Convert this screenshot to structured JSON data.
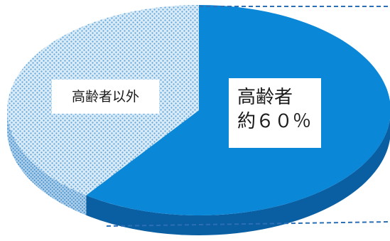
{
  "chart_data": {
    "type": "pie",
    "style": "3d",
    "slices": [
      {
        "label": "高齢者",
        "value_text": "約６０％",
        "value": 60,
        "pattern": "solid"
      },
      {
        "label": "高齢者以外",
        "value": 40,
        "pattern": "dotted"
      }
    ]
  },
  "colors": {
    "elderly_top": "#0a87d6",
    "elderly_side": "#0a5fa3",
    "other_top": "#b9d8ef",
    "other_side": "#7fb3d9",
    "dash_line": "#2c6fb5"
  }
}
